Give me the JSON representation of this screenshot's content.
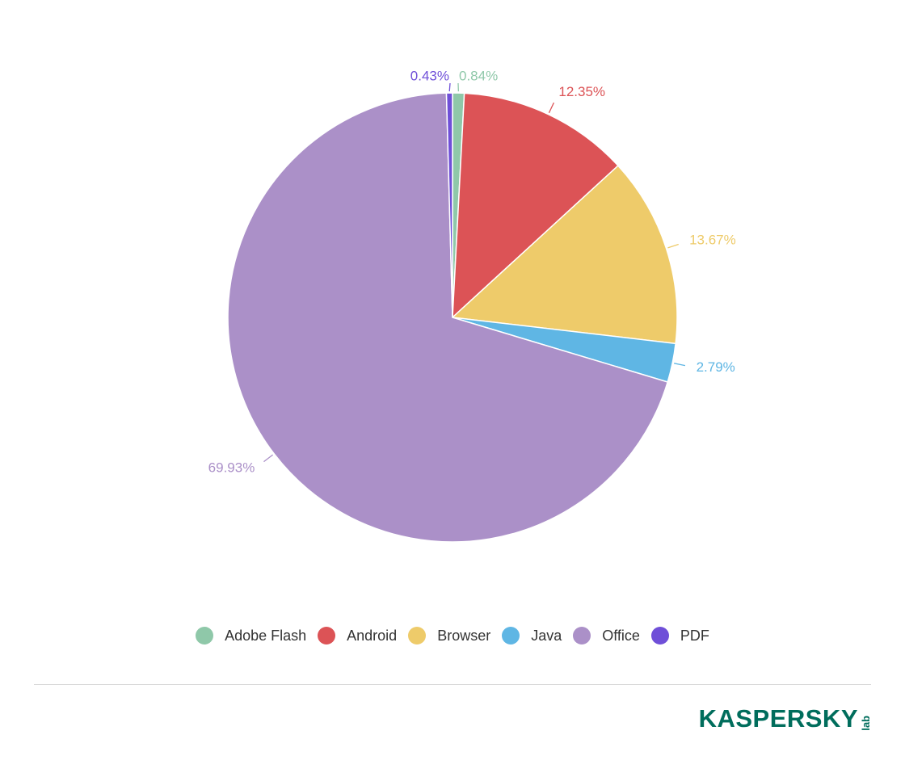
{
  "chart_data": {
    "type": "pie",
    "categories": [
      "Adobe Flash",
      "Android",
      "Browser",
      "Java",
      "Office",
      "PDF"
    ],
    "values": [
      0.84,
      12.35,
      13.67,
      2.79,
      69.93,
      0.43
    ],
    "labels": [
      "0.84%",
      "12.35%",
      "13.67%",
      "2.79%",
      "69.93%",
      "0.43%"
    ],
    "colors": [
      "#8fc8a9",
      "#dc5356",
      "#eecb6a",
      "#5fb6e4",
      "#ab90c8",
      "#6f4fd8"
    ],
    "title": "",
    "legend_position": "bottom"
  },
  "legend": {
    "items": [
      {
        "label": "Adobe Flash",
        "color": "#8fc8a9"
      },
      {
        "label": "Android",
        "color": "#dc5356"
      },
      {
        "label": "Browser",
        "color": "#eecb6a"
      },
      {
        "label": "Java",
        "color": "#5fb6e4"
      },
      {
        "label": "Office",
        "color": "#ab90c8"
      },
      {
        "label": "PDF",
        "color": "#6f4fd8"
      }
    ]
  },
  "logo": {
    "main": "KASPERSKY",
    "sub": "lab",
    "color": "#006d5c"
  }
}
